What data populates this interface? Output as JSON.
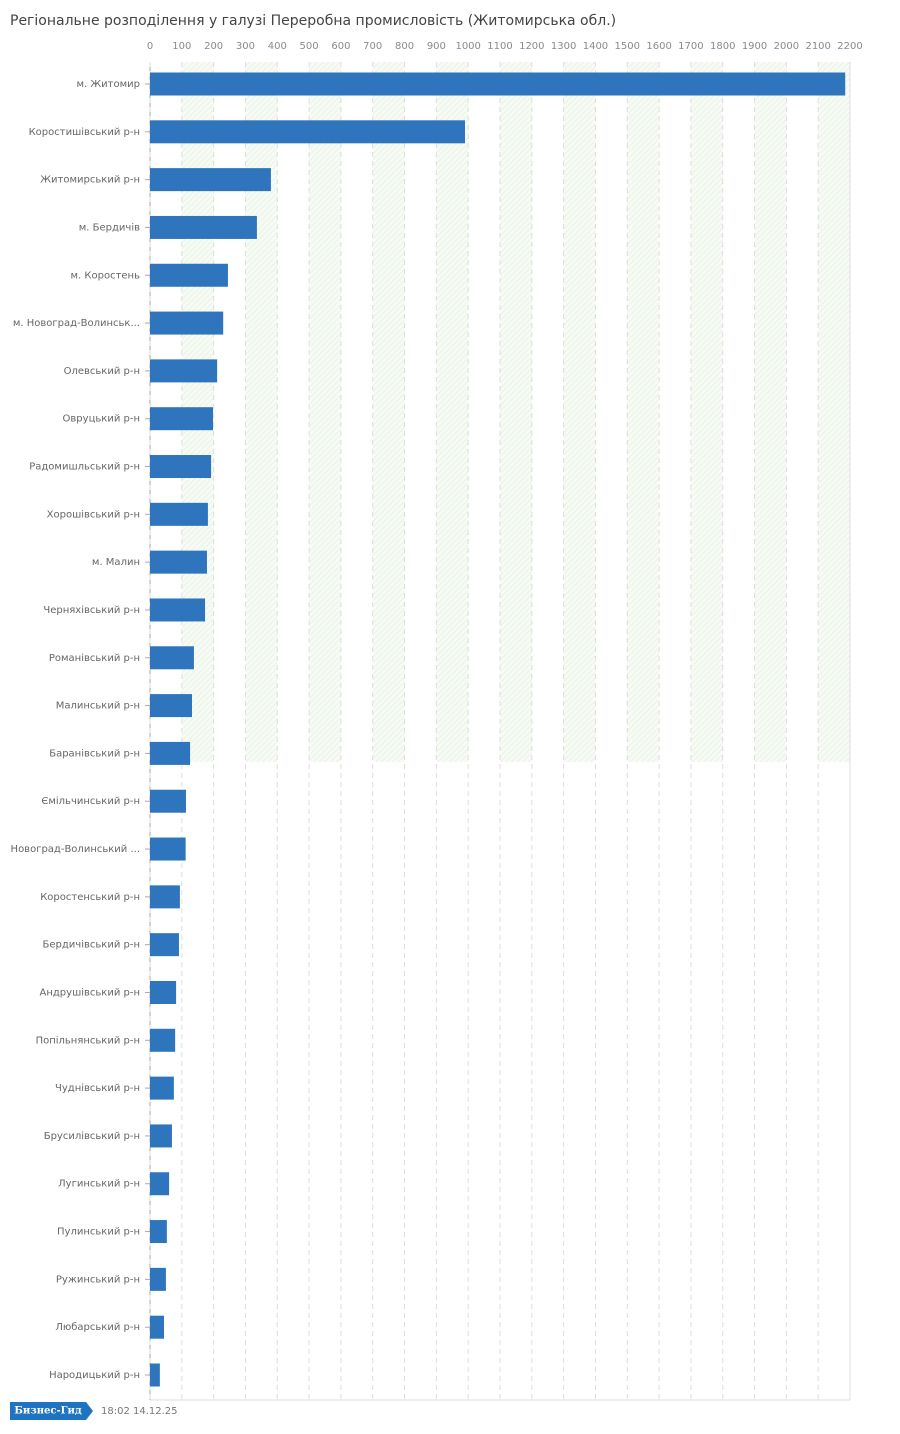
{
  "chart_data": {
    "type": "barh",
    "title": "Регіональне розподілення у галузі Переробна промисловість (Житомирська обл.)",
    "categories": [
      "м. Житомир",
      "Коростишівський р-н",
      "Житомирський р-н",
      "м. Бердичів",
      "м. Коростень",
      "м. Новоград-Волинськ...",
      "Олевський р-н",
      "Овруцький р-н",
      "Радомишльський р-н",
      "Хорошівський р-н",
      "м. Малин",
      "Черняхівський р-н",
      "Романівський р-н",
      "Малинський р-н",
      "Баранівський р-н",
      "Ємільчинський р-н",
      "Новоград-Волинський ...",
      "Коростенський р-н",
      "Бердичівський р-н",
      "Андрушівський р-н",
      "Попільнянський р-н",
      "Чуднівський р-н",
      "Брусилівський р-н",
      "Лугинський р-н",
      "Пулинський р-н",
      "Ружинський р-н",
      "Любарський р-н",
      "Народицький р-н"
    ],
    "values": [
      2185,
      990,
      380,
      336,
      245,
      230,
      211,
      198,
      192,
      182,
      179,
      173,
      138,
      132,
      126,
      113,
      112,
      94,
      91,
      82,
      79,
      75,
      69,
      60,
      53,
      50,
      44,
      31
    ],
    "color": "#2e75bd",
    "xlim": [
      0,
      2200
    ],
    "xticks": [
      0,
      100,
      200,
      300,
      400,
      500,
      600,
      700,
      800,
      900,
      1000,
      1100,
      1200,
      1300,
      1400,
      1500,
      1600,
      1700,
      1800,
      1900,
      2000,
      2100,
      2200
    ],
    "grid": true
  },
  "footer": {
    "logo": "Бизнес-Гид",
    "timestamp": "18:02 14.12.25"
  }
}
